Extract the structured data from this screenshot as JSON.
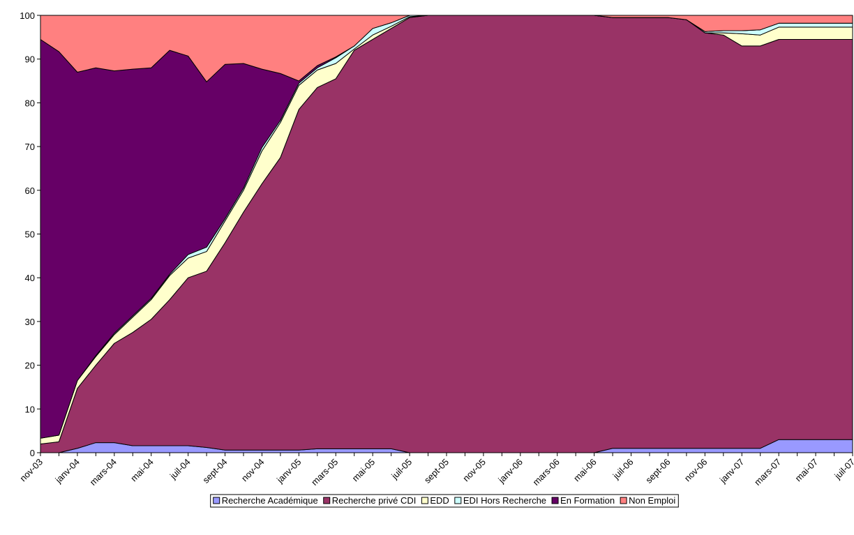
{
  "chart_data": {
    "type": "stacked_area",
    "categories": [
      "nov-03",
      null,
      "janv-04",
      null,
      "mars-04",
      null,
      "mai-04",
      null,
      "juil-04",
      null,
      "sept-04",
      null,
      "nov-04",
      null,
      "janv-05",
      null,
      "mars-05",
      null,
      "mai-05",
      null,
      "juil-05",
      null,
      "sept-05",
      null,
      "nov-05",
      null,
      "janv-06",
      null,
      "mars-06",
      null,
      "mai-06",
      null,
      "juil-06",
      null,
      "sept-06",
      null,
      "nov-06",
      null,
      "janv-07",
      null,
      "mars-07",
      null,
      "mai-07",
      null,
      "juil-07"
    ],
    "ylim": [
      0,
      100
    ],
    "yticks": [
      0,
      10,
      20,
      30,
      40,
      50,
      60,
      70,
      80,
      90,
      100
    ],
    "grid": false,
    "legend": "bottom",
    "series": [
      {
        "name": "Recherche Académique",
        "color": "#9999ff",
        "values": [
          0,
          0,
          1,
          2.3,
          2.3,
          1.6,
          1.6,
          1.6,
          1.6,
          1.2,
          0.6,
          0.6,
          0.6,
          0.6,
          0.6,
          0.9,
          0.9,
          0.9,
          0.9,
          0.9,
          0,
          0,
          0,
          0,
          0,
          0,
          0,
          0,
          0,
          0,
          0,
          1,
          1,
          1,
          1,
          1,
          1,
          1,
          1,
          1,
          3,
          3,
          3,
          3,
          3
        ]
      },
      {
        "name": "Recherche privé CDI",
        "color": "#993366",
        "values": [
          2,
          2.5,
          13.7,
          17.7,
          22.7,
          25.9,
          28.9,
          33.4,
          38.4,
          40.3,
          47.4,
          54.4,
          60.9,
          66.9,
          77.9,
          82.6,
          84.6,
          91.1,
          93.6,
          96.1,
          99.5,
          100,
          100,
          100,
          100,
          100,
          100,
          100,
          100,
          100,
          100,
          98.5,
          98.5,
          98.5,
          98.5,
          98,
          95,
          94.5,
          92,
          92,
          91.5,
          91.5,
          91.5,
          91.5,
          91.5
        ]
      },
      {
        "name": "EDD",
        "color": "#ffffcc",
        "values": [
          1.3,
          1.5,
          1.8,
          2,
          2,
          3.5,
          4.5,
          5.5,
          4.5,
          4.5,
          5,
          5,
          7.5,
          8,
          5.5,
          4,
          3.5,
          0.3,
          1,
          0.5,
          0.2,
          0,
          0,
          0,
          0,
          0,
          0,
          0,
          0,
          0,
          0,
          0,
          0,
          0,
          0,
          0,
          0,
          0.5,
          2.8,
          2.5,
          2.8,
          2.8,
          2.8,
          2.8,
          2.8
        ]
      },
      {
        "name": "EDI Hors Recherche",
        "color": "#ccffff",
        "values": [
          0,
          0,
          0,
          0.2,
          0.3,
          0.3,
          0.3,
          0.3,
          0.8,
          1,
          0.5,
          0.5,
          0.8,
          0.5,
          0.5,
          0.5,
          1.3,
          0.7,
          1.5,
          0.8,
          0.3,
          0,
          0,
          0,
          0,
          0,
          0,
          0,
          0,
          0,
          0,
          0,
          0,
          0,
          0,
          0,
          0.3,
          0.5,
          0.7,
          1.2,
          0.9,
          0.9,
          0.9,
          0.9,
          0.9
        ]
      },
      {
        "name": "En Formation",
        "color": "#660066",
        "values": [
          91.2,
          87.7,
          70.5,
          65.8,
          60,
          56.4,
          52.7,
          51.2,
          45.4,
          37.8,
          35.3,
          28.5,
          17.9,
          10.7,
          0.5,
          0.5,
          0.2,
          0,
          0,
          0,
          0,
          0,
          0,
          0,
          0,
          0,
          0,
          0,
          0,
          0,
          0,
          0,
          0,
          0,
          0,
          0,
          0,
          0,
          0,
          0,
          0,
          0,
          0,
          0,
          0
        ]
      },
      {
        "name": "Non Emploi",
        "color": "#ff8080",
        "values": [
          5.5,
          8.3,
          13,
          12,
          12.7,
          12.3,
          12,
          8,
          9.3,
          15.2,
          11.2,
          11,
          12.3,
          13.3,
          15,
          11.5,
          9.5,
          7,
          3,
          1.7,
          0,
          0,
          0,
          0,
          0,
          0,
          0,
          0,
          0,
          0,
          0,
          0.5,
          0.5,
          0.5,
          0.5,
          1,
          3.7,
          3.5,
          3.5,
          3.3,
          1.8,
          1.8,
          1.8,
          1.8,
          1.8
        ]
      }
    ]
  }
}
